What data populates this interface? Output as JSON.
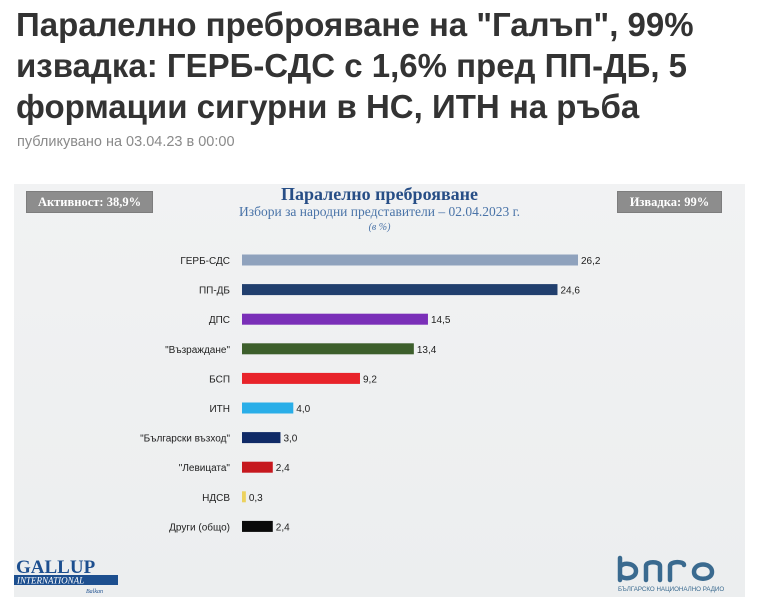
{
  "article": {
    "headline": "Паралелно преброяване на \"Галъп\", 99% извадка: ГЕРБ-СДС с 1,6% пред ПП-ДБ, 5 формации сигурни в НС, ИТН на ръба",
    "published": "публикувано на 03.04.23 в 00:00"
  },
  "badges": {
    "turnout": "Активност: 38,9%",
    "sample": "Извадка: 99%"
  },
  "logos": {
    "gallup_line1": "GALLUP",
    "gallup_line2": "INTERNATIONAL",
    "gallup_line3": "Balkan",
    "bnr_text": "БЪЛГАРСКО НАЦИОНАЛНО РАДИО"
  },
  "colors": {
    "title": "#274e86",
    "subtitle": "#4a74a8",
    "badge": "#8d8d8d",
    "panel": "#eef0f1"
  },
  "chart_data": {
    "type": "bar",
    "orientation": "horizontal",
    "title": "Паралелно преброяване",
    "subtitle": "Избори за народни представители – 02.04.2023 г.",
    "unit": "(в %)",
    "categories": [
      "ГЕРБ-СДС",
      "ПП-ДБ",
      "ДПС",
      "\"Възраждане\"",
      "БСП",
      "ИТН",
      "\"Български възход\"",
      "\"Левицата\"",
      "НДСВ",
      "Други (общо)"
    ],
    "values": [
      26.2,
      24.6,
      14.5,
      13.4,
      9.2,
      4.0,
      3.0,
      2.4,
      0.3,
      2.4
    ],
    "value_labels": [
      "26,2",
      "24,6",
      "14,5",
      "13,4",
      "9,2",
      "4,0",
      "3,0",
      "2,4",
      "0,3",
      "2,4"
    ],
    "bar_colors": [
      "#8fa2bd",
      "#213f6e",
      "#7a2fb8",
      "#3d5f2c",
      "#e8232a",
      "#29aee8",
      "#0f2a66",
      "#c6181e",
      "#ecd25e",
      "#0a0a0a"
    ],
    "xlim": [
      0,
      26.2
    ],
    "grid": false,
    "legend": "none"
  }
}
